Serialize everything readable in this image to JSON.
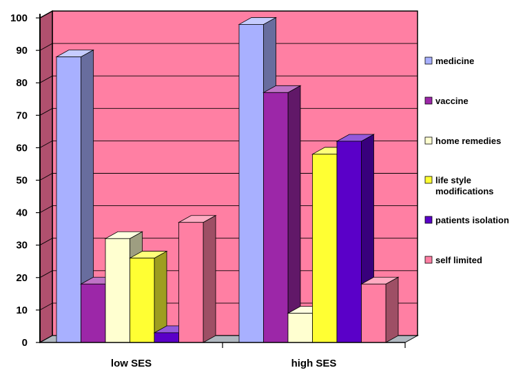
{
  "chart_data": {
    "type": "bar",
    "title": "",
    "xlabel": "",
    "ylabel": "",
    "ylim": [
      0,
      100
    ],
    "yticks": [
      0,
      10,
      20,
      30,
      40,
      50,
      60,
      70,
      80,
      90,
      100
    ],
    "categories": [
      "low SES",
      "high SES"
    ],
    "series": [
      {
        "name": "medicine",
        "values": [
          88,
          98
        ],
        "color": "#a8b0ff"
      },
      {
        "name": "vaccine",
        "values": [
          18,
          77
        ],
        "color": "#9c27a8"
      },
      {
        "name": "home remedies",
        "values": [
          32,
          9
        ],
        "color": "#ffffd0"
      },
      {
        "name": "life style modifications",
        "values": [
          26,
          58
        ],
        "color": "#ffff33"
      },
      {
        "name": "patients isolation",
        "values": [
          3,
          62
        ],
        "color": "#5a00c8"
      },
      {
        "name": "self limited",
        "values": [
          37,
          18
        ],
        "color": "#ff7fa3"
      }
    ],
    "grid": true,
    "legend": "right",
    "colors": {
      "wall": "#ff7fa3",
      "side_wall": "#b0506e",
      "floor": "#b0b8c0"
    }
  }
}
